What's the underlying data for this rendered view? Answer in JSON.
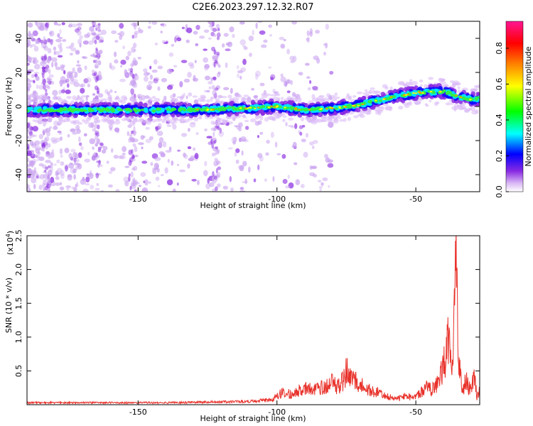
{
  "figure": {
    "title": "C2E6.2023.297.12.32.R07"
  },
  "chart_data": [
    {
      "type": "heatmap",
      "xlabel": "Height of straight line (km)",
      "ylabel": "Frequency (Hz)",
      "xlim": [
        -190,
        -27
      ],
      "ylim": [
        -50,
        50
      ],
      "xticks": [
        "-150",
        "-100",
        "-50"
      ],
      "xtick_values": [
        -150,
        -100,
        -50
      ],
      "yticks": [
        "40",
        "20",
        "0",
        "-20",
        "-40"
      ],
      "ytick_values": [
        40,
        20,
        0,
        -20,
        -40
      ],
      "grid": false,
      "colorbar": {
        "label": "Normalized spectral amplitude",
        "range": [
          0,
          0.95
        ],
        "ticks": [
          "0.0",
          "0.2",
          "0.4",
          "0.6",
          "0.8"
        ],
        "tick_values": [
          0.0,
          0.2,
          0.4,
          0.6,
          0.8
        ],
        "colors": [
          "#ffffff",
          "#d9b8f5",
          "#8a2be2",
          "#0000ff",
          "#00ffff",
          "#00ff00",
          "#ffff00",
          "#ff8000",
          "#ff0000",
          "#ff1493"
        ]
      },
      "ridge": {
        "name": "",
        "x": [
          -190,
          -170,
          -150,
          -130,
          -110,
          -100,
          -90,
          -80,
          -70,
          -60,
          -50,
          -40,
          -35,
          -30,
          -27
        ],
        "y": [
          -2,
          -2,
          -2,
          -2,
          -1,
          0,
          -2,
          -1,
          1,
          5,
          8,
          9,
          6,
          4,
          5
        ]
      }
    },
    {
      "type": "line",
      "xlabel": "Height of straight line (km)",
      "ylabel": "SNR (10 * v/v)",
      "yscale_label": "(x10",
      "yscale_exponent": "4",
      "yscale_close": ")",
      "xlim": [
        -190,
        -27
      ],
      "ylim": [
        0,
        25000
      ],
      "xticks": [
        "-150",
        "-100",
        "-50"
      ],
      "xtick_values": [
        -150,
        -100,
        -50
      ],
      "yticks": [
        "0.5",
        "1.0",
        "1.5",
        "2.0",
        "2.5"
      ],
      "ytick_values": [
        5000,
        10000,
        15000,
        20000,
        25000
      ],
      "grid": false,
      "series": [
        {
          "name": "",
          "color": "#e8312a",
          "x": [
            -190,
            -160,
            -140,
            -120,
            -110,
            -102,
            -98,
            -94,
            -90,
            -86,
            -82,
            -80,
            -78,
            -76,
            -75,
            -74,
            -72,
            -70,
            -68,
            -66,
            -64,
            -62,
            -60,
            -58,
            -56,
            -54,
            -50,
            -46,
            -44,
            -42,
            -40,
            -38,
            -37,
            -36,
            -35.5,
            -35,
            -34.5,
            -34,
            -33,
            -32,
            -31,
            -30,
            -29,
            -28,
            -27
          ],
          "y": [
            300,
            300,
            300,
            400,
            500,
            700,
            1800,
            1500,
            2500,
            2200,
            2800,
            3300,
            2600,
            3600,
            5200,
            3700,
            3900,
            3000,
            2500,
            2000,
            2000,
            1300,
            1200,
            900,
            900,
            1200,
            1100,
            2600,
            2200,
            3500,
            6000,
            9800,
            7000,
            14000,
            25000,
            16000,
            6000,
            4200,
            2400,
            3800,
            2600,
            2200,
            4200,
            1200,
            2000
          ]
        }
      ]
    }
  ]
}
